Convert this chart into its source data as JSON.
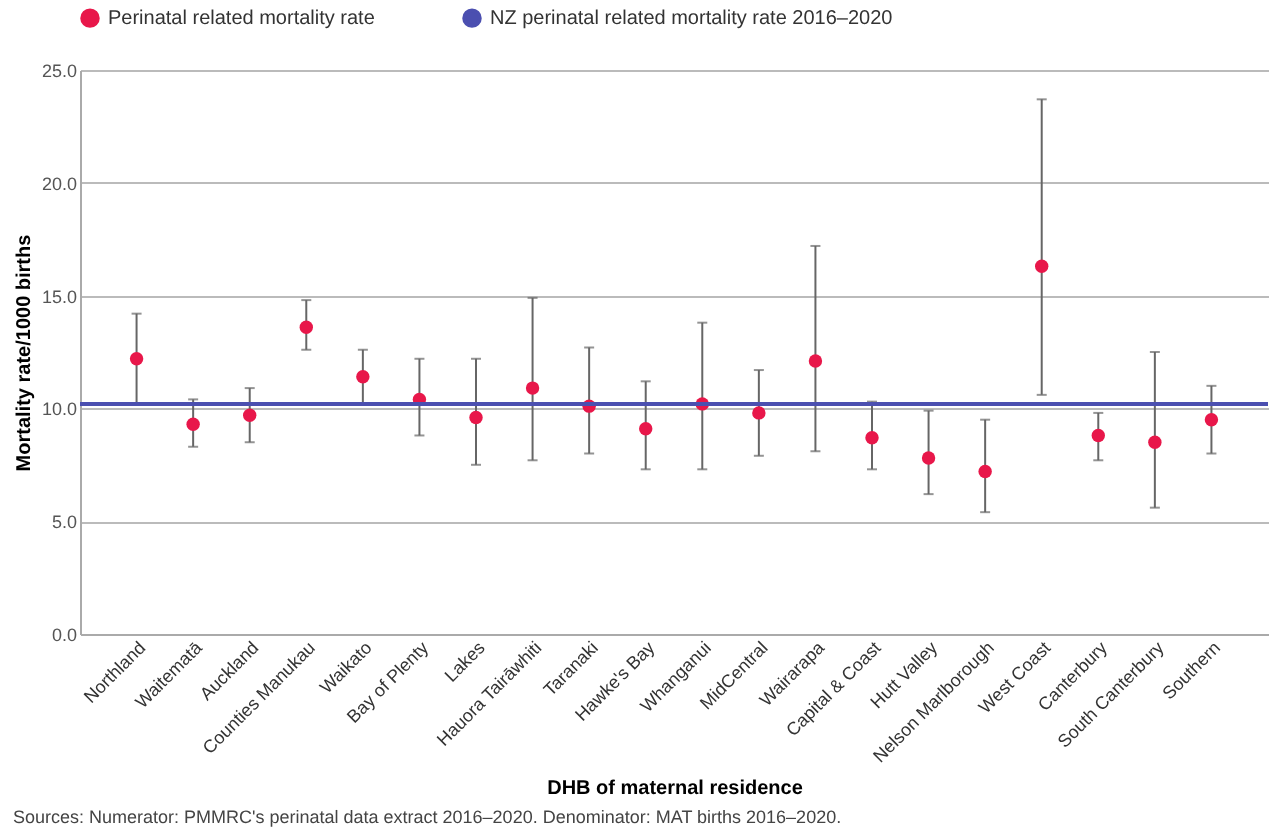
{
  "chart_data": {
    "type": "scatter",
    "xlabel": "DHB of maternal residence",
    "ylabel": "Mortality rate/1000 births",
    "categories": [
      "Northland",
      "Waitematā",
      "Auckland",
      "Counties Manukau",
      "Waikato",
      "Bay of Plenty",
      "Lakes",
      "Hauora Tairāwhiti",
      "Taranaki",
      "Hawke's Bay",
      "Whanganui",
      "MidCentral",
      "Wairarapa",
      "Capital & Coast",
      "Hutt Valley",
      "Nelson Marlborough",
      "West Coast",
      "Canterbury",
      "South Canterbury",
      "Southern"
    ],
    "series": [
      {
        "name": "Perinatal related mortality rate",
        "color": "#e8174a",
        "values": [
          12.2,
          9.3,
          9.7,
          13.6,
          11.4,
          10.4,
          9.6,
          10.9,
          10.1,
          9.1,
          10.2,
          9.8,
          12.1,
          8.7,
          7.8,
          7.2,
          16.3,
          8.8,
          8.5,
          9.5
        ],
        "errors": [
          [
            10.2,
            14.2
          ],
          [
            8.3,
            10.4
          ],
          [
            8.5,
            10.9
          ],
          [
            12.6,
            14.8
          ],
          [
            10.2,
            12.6
          ],
          [
            8.8,
            12.2
          ],
          [
            7.5,
            12.2
          ],
          [
            7.7,
            14.9
          ],
          [
            8.0,
            12.7
          ],
          [
            7.3,
            11.2
          ],
          [
            7.3,
            13.8
          ],
          [
            7.9,
            11.7
          ],
          [
            8.1,
            17.2
          ],
          [
            7.3,
            10.3
          ],
          [
            6.2,
            9.9
          ],
          [
            5.4,
            9.5
          ],
          [
            10.6,
            23.7
          ],
          [
            7.7,
            9.8
          ],
          [
            5.6,
            12.5
          ],
          [
            8.0,
            11.0
          ]
        ]
      }
    ],
    "ref_lines": [
      {
        "axis": "y",
        "value": 10.2,
        "label": "NZ perinatal related mortality rate 2016–2020",
        "color": "#4b4fb0"
      }
    ],
    "ylim": [
      0,
      25
    ],
    "yticks": [
      {
        "value": 0,
        "label": "0.0"
      },
      {
        "value": 5,
        "label": "5.0"
      },
      {
        "value": 10,
        "label": "10.0"
      },
      {
        "value": 15,
        "label": "15.0"
      },
      {
        "value": 20,
        "label": "20.0"
      },
      {
        "value": 25,
        "label": "25.0"
      }
    ],
    "grid": "y",
    "legend": "top",
    "marker": "circle",
    "annotations": [
      "Sources: Numerator: PMMRC's perinatal data extract 2016–2020. Denominator: MAT births 2016–2020."
    ]
  }
}
